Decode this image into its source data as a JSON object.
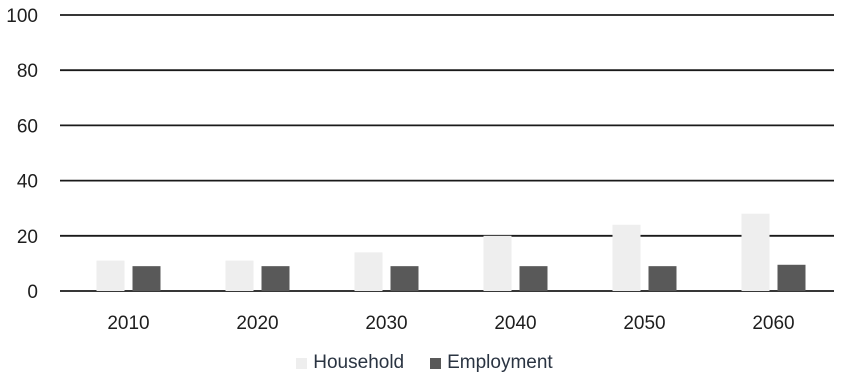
{
  "chart_data": {
    "type": "bar",
    "title": "",
    "xlabel": "",
    "ylabel": "",
    "categories": [
      "2010",
      "2020",
      "2030",
      "2040",
      "2050",
      "2060"
    ],
    "series": [
      {
        "name": "Household",
        "color": "#eeeeee",
        "values": [
          11,
          11,
          14,
          20,
          24,
          28
        ]
      },
      {
        "name": "Employment",
        "color": "#595959",
        "values": [
          9,
          9,
          9,
          9,
          9,
          9.5
        ]
      }
    ],
    "ylim": [
      0,
      100
    ],
    "yticks": [
      "0",
      "20",
      "40",
      "60",
      "80",
      "100"
    ],
    "grid": true,
    "legend_position": "bottom"
  }
}
